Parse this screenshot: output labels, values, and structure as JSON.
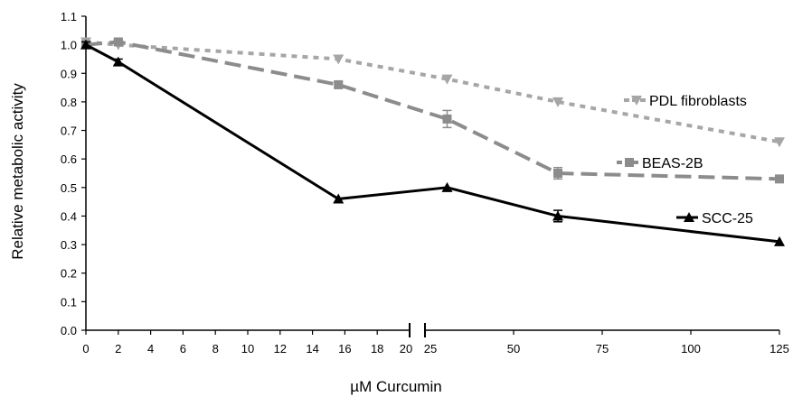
{
  "chart_data": {
    "type": "line",
    "title": "",
    "xlabel": "µM Curcumin",
    "ylabel": "Relative metabolic activity",
    "ylim": [
      0,
      1.1
    ],
    "y_ticks": [
      "0.0",
      "0.1",
      "0.2",
      "0.3",
      "0.4",
      "0.5",
      "0.6",
      "0.7",
      "0.8",
      "0.9",
      "1.0",
      "1.1"
    ],
    "x_axis_broken": true,
    "x_segments": [
      {
        "range": [
          0,
          20
        ],
        "ticks": [
          "0",
          "2",
          "4",
          "6",
          "8",
          "10",
          "12",
          "14",
          "16",
          "18",
          "20"
        ]
      },
      {
        "range": [
          25,
          125
        ],
        "ticks": [
          "25",
          "50",
          "75",
          "100",
          "125"
        ]
      }
    ],
    "grid": false,
    "series": [
      {
        "name": "PDL fibroblasts",
        "color": "#a6a6a6",
        "dash": "dotted",
        "marker": "triangle-down",
        "x": [
          0,
          2,
          15.6,
          31.25,
          62.5,
          125
        ],
        "y": [
          1.01,
          1.0,
          0.95,
          0.88,
          0.8,
          0.66
        ],
        "err": [
          0,
          0,
          0,
          0,
          0,
          0
        ]
      },
      {
        "name": "BEAS-2B",
        "color": "#8c8c8c",
        "dash": "dashed",
        "marker": "square",
        "x": [
          0,
          2,
          15.6,
          31.25,
          62.5,
          125
        ],
        "y": [
          1.0,
          1.01,
          0.86,
          0.74,
          0.55,
          0.53
        ],
        "err": [
          0.01,
          0.01,
          0.01,
          0.03,
          0.02,
          0.0
        ]
      },
      {
        "name": "SCC-25",
        "color": "#000000",
        "dash": "solid",
        "marker": "triangle-up",
        "x": [
          0,
          2,
          15.6,
          31.25,
          62.5,
          125
        ],
        "y": [
          1.0,
          0.94,
          0.46,
          0.5,
          0.4,
          0.31
        ],
        "err": [
          0.01,
          0.01,
          0.0,
          0.0,
          0.02,
          0.0
        ]
      }
    ]
  }
}
